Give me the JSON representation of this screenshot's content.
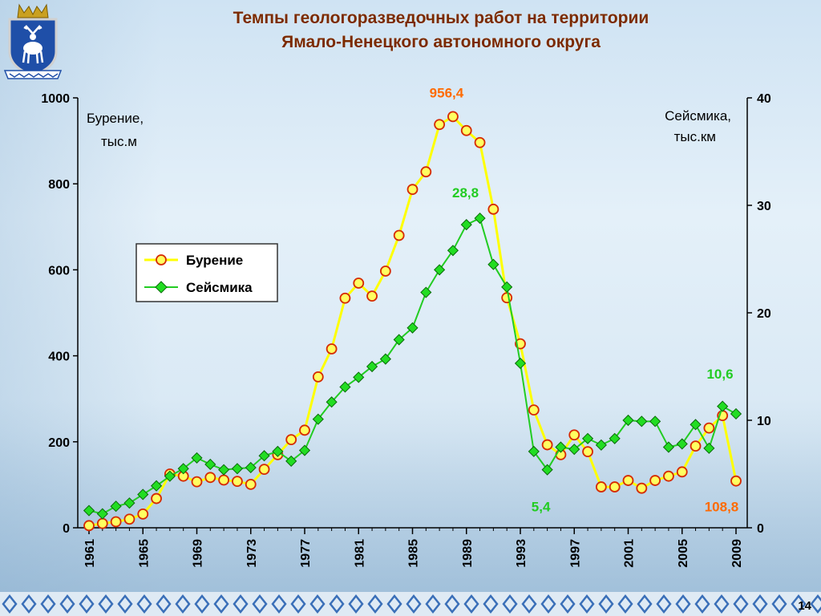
{
  "header": {
    "title_line1": "Темпы геологоразведочных работ на территории",
    "title_line2": "Ямало-Ненецкого автономного округа"
  },
  "page_number": "14",
  "icons": {
    "emblem": "coat-of-arms-icon"
  },
  "colors": {
    "drilling_line": "#ffff00",
    "drilling_marker_fill": "#ffff60",
    "drilling_marker_stroke": "#d62a00",
    "seismic_line": "#22cc22",
    "seismic_marker": "#118811",
    "drilling_annotation": "#ff6a00",
    "seismic_annotation": "#22cc22",
    "title": "#7a2a00"
  },
  "chart_data": {
    "type": "line",
    "title": "",
    "x_ticks": [
      "1961",
      "1965",
      "1969",
      "1973",
      "1977",
      "1981",
      "1985",
      "1989",
      "1993",
      "1997",
      "2001",
      "2005",
      "2009"
    ],
    "xlim": [
      1961,
      2009
    ],
    "y_left": {
      "label_line1": "Бурение,",
      "label_line2": "тыс.м",
      "ylim": [
        0,
        1000
      ],
      "ticks": [
        "0",
        "200",
        "400",
        "600",
        "800",
        "1000"
      ]
    },
    "y_right": {
      "label_line1": "Сейсмика,",
      "label_line2": "тыс.км",
      "ylim": [
        0,
        40
      ],
      "ticks": [
        "0",
        "10",
        "20",
        "30",
        "40"
      ]
    },
    "legend": {
      "placement": "upper-left",
      "entries": [
        "Бурение",
        "Сейсмика"
      ]
    },
    "series": [
      {
        "name": "Бурение",
        "axis": "left",
        "x": [
          1961,
          1962,
          1963,
          1964,
          1965,
          1966,
          1967,
          1968,
          1969,
          1970,
          1971,
          1972,
          1973,
          1974,
          1975,
          1976,
          1977,
          1978,
          1979,
          1980,
          1981,
          1982,
          1983,
          1984,
          1985,
          1986,
          1987,
          1988,
          1989,
          1990,
          1991,
          1992,
          1993,
          1994,
          1995,
          1996,
          1997,
          1998,
          1999,
          2000,
          2001,
          2002,
          2003,
          2004,
          2005,
          2006,
          2007,
          2008,
          2009
        ],
        "values": [
          5,
          10,
          14,
          20,
          32,
          68,
          125,
          120,
          107,
          117,
          111,
          108,
          101,
          136,
          170,
          205,
          227,
          351,
          416,
          534,
          569,
          539,
          597,
          680,
          787,
          828,
          938,
          956.4,
          924,
          896,
          741,
          535,
          428,
          274,
          193,
          170,
          216,
          177,
          95,
          95,
          110,
          92,
          110,
          120,
          130,
          190,
          232,
          261,
          108.8
        ]
      },
      {
        "name": "Сейсмика",
        "axis": "right",
        "x": [
          1961,
          1962,
          1963,
          1964,
          1965,
          1966,
          1967,
          1968,
          1969,
          1970,
          1971,
          1972,
          1973,
          1974,
          1975,
          1976,
          1977,
          1978,
          1979,
          1980,
          1981,
          1982,
          1983,
          1984,
          1985,
          1986,
          1987,
          1988,
          1989,
          1990,
          1991,
          1992,
          1993,
          1994,
          1995,
          1996,
          1997,
          1998,
          1999,
          2000,
          2001,
          2002,
          2003,
          2004,
          2005,
          2006,
          2007,
          2008,
          2009
        ],
        "values": [
          1.6,
          1.3,
          2.0,
          2.3,
          3.1,
          3.9,
          4.8,
          5.5,
          6.5,
          5.9,
          5.4,
          5.5,
          5.6,
          6.7,
          7.1,
          6.2,
          7.2,
          10.1,
          11.7,
          13.1,
          14.0,
          15.0,
          15.7,
          17.5,
          18.6,
          21.9,
          24.0,
          25.8,
          28.2,
          28.8,
          24.5,
          22.4,
          15.3,
          7.1,
          5.4,
          7.5,
          7.3,
          8.3,
          7.7,
          8.3,
          10.0,
          9.9,
          9.9,
          7.5,
          7.8,
          9.6,
          7.4,
          11.3,
          10.6
        ]
      }
    ],
    "annotations": [
      {
        "text": "956,4",
        "series": "Бурение",
        "x": 1988
      },
      {
        "text": "28,8",
        "series": "Сейсмика",
        "x": 1990
      },
      {
        "text": "5,4",
        "series": "Сейсмика",
        "x": 1995
      },
      {
        "text": "10,6",
        "series": "Сейсмика",
        "x": 2009
      },
      {
        "text": "108,8",
        "series": "Бурение",
        "x": 2009
      }
    ]
  }
}
